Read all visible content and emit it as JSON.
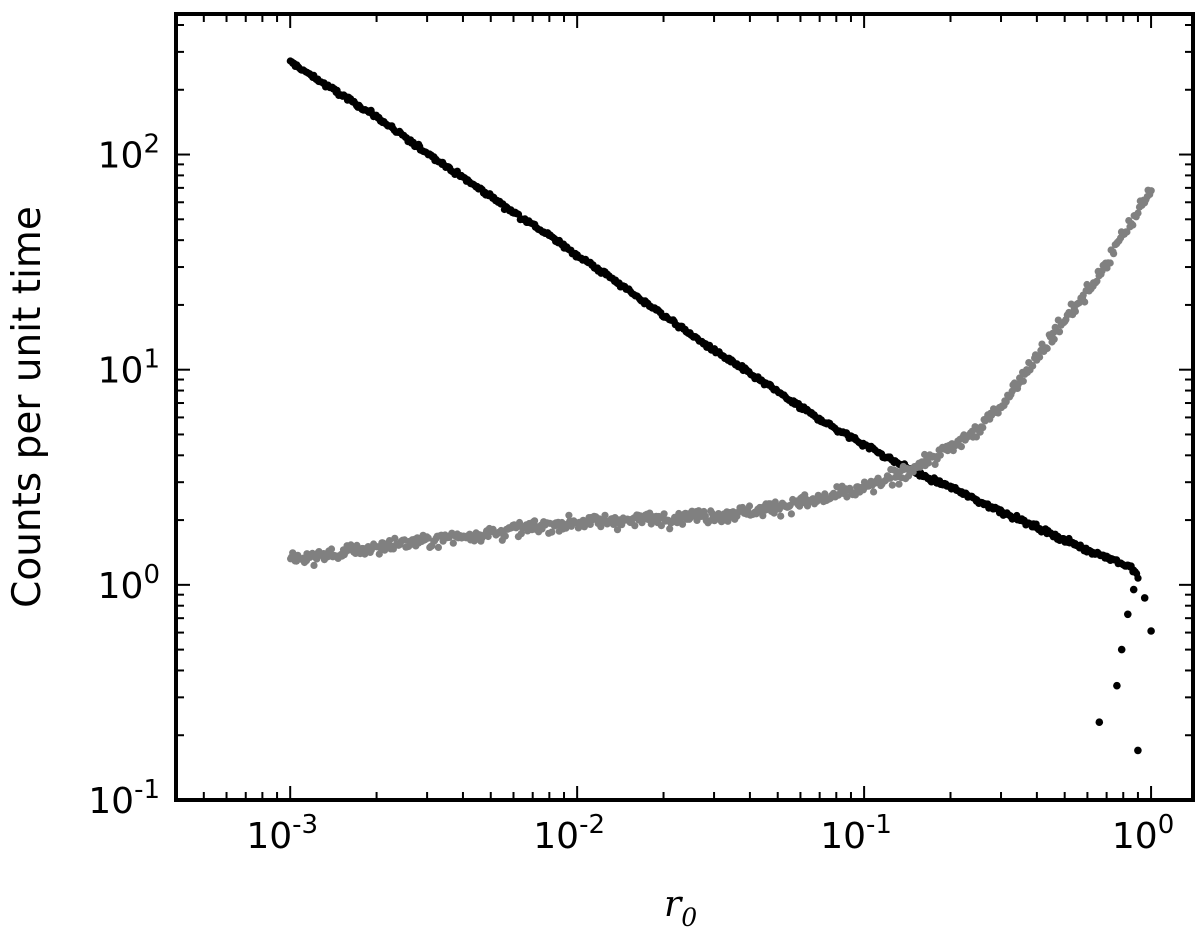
{
  "chart_data": {
    "type": "scatter",
    "title": "",
    "xlabel": "r",
    "xlabel_subscript": "0",
    "ylabel": "Counts per unit time",
    "x_scale": "log",
    "y_scale": "log",
    "xlim": [
      0.0004,
      1.4
    ],
    "ylim": [
      0.1,
      450
    ],
    "grid": false,
    "legend": "none",
    "x_ticks": [
      {
        "value": 0.001,
        "base": "10",
        "exp": "-3"
      },
      {
        "value": 0.01,
        "base": "10",
        "exp": "-2"
      },
      {
        "value": 0.1,
        "base": "10",
        "exp": "-1"
      },
      {
        "value": 1,
        "base": "10",
        "exp": "0"
      }
    ],
    "y_ticks": [
      {
        "value": 0.1,
        "base": "10",
        "exp": "-1"
      },
      {
        "value": 1,
        "base": "10",
        "exp": "0"
      },
      {
        "value": 10,
        "base": "10",
        "exp": "1"
      },
      {
        "value": 100,
        "base": "10",
        "exp": "2"
      }
    ],
    "series": [
      {
        "color": "#000000",
        "points": [
          [
            0.001,
            270
          ],
          [
            0.0012,
            230
          ],
          [
            0.0015,
            190
          ],
          [
            0.002,
            150
          ],
          [
            0.0025,
            120
          ],
          [
            0.003,
            102
          ],
          [
            0.004,
            78
          ],
          [
            0.005,
            64
          ],
          [
            0.006,
            54
          ],
          [
            0.008,
            42
          ],
          [
            0.01,
            34
          ],
          [
            0.013,
            27
          ],
          [
            0.016,
            22
          ],
          [
            0.02,
            18
          ],
          [
            0.025,
            14.5
          ],
          [
            0.03,
            12.3
          ],
          [
            0.04,
            9.6
          ],
          [
            0.05,
            7.9
          ],
          [
            0.06,
            6.7
          ],
          [
            0.08,
            5.3
          ],
          [
            0.1,
            4.5
          ],
          [
            0.13,
            3.7
          ],
          [
            0.16,
            3.2
          ],
          [
            0.2,
            2.85
          ],
          [
            0.25,
            2.45
          ],
          [
            0.3,
            2.2
          ],
          [
            0.4,
            1.85
          ],
          [
            0.5,
            1.62
          ],
          [
            0.6,
            1.45
          ],
          [
            0.7,
            1.35
          ],
          [
            0.8,
            1.25
          ],
          [
            0.85,
            1.2
          ],
          [
            0.9,
            1.1
          ],
          [
            0.66,
            0.23
          ],
          [
            0.76,
            0.34
          ],
          [
            0.79,
            0.5
          ],
          [
            0.83,
            0.73
          ],
          [
            0.87,
            0.95
          ],
          [
            0.9,
            0.17
          ],
          [
            0.95,
            0.87
          ],
          [
            1.0,
            0.61
          ]
        ]
      },
      {
        "color": "#808080",
        "points": [
          [
            0.001,
            1.3
          ],
          [
            0.0015,
            1.4
          ],
          [
            0.002,
            1.5
          ],
          [
            0.003,
            1.6
          ],
          [
            0.005,
            1.75
          ],
          [
            0.007,
            1.85
          ],
          [
            0.01,
            1.95
          ],
          [
            0.015,
            2.0
          ],
          [
            0.02,
            2.05
          ],
          [
            0.03,
            2.1
          ],
          [
            0.04,
            2.2
          ],
          [
            0.05,
            2.3
          ],
          [
            0.07,
            2.5
          ],
          [
            0.1,
            2.8
          ],
          [
            0.13,
            3.2
          ],
          [
            0.16,
            3.7
          ],
          [
            0.2,
            4.3
          ],
          [
            0.25,
            5.3
          ],
          [
            0.3,
            6.8
          ],
          [
            0.35,
            9.0
          ],
          [
            0.4,
            11.5
          ],
          [
            0.5,
            17.0
          ],
          [
            0.6,
            23.0
          ],
          [
            0.7,
            31.0
          ],
          [
            0.8,
            42.0
          ],
          [
            0.9,
            55.0
          ],
          [
            1.0,
            68.0
          ]
        ]
      }
    ]
  }
}
